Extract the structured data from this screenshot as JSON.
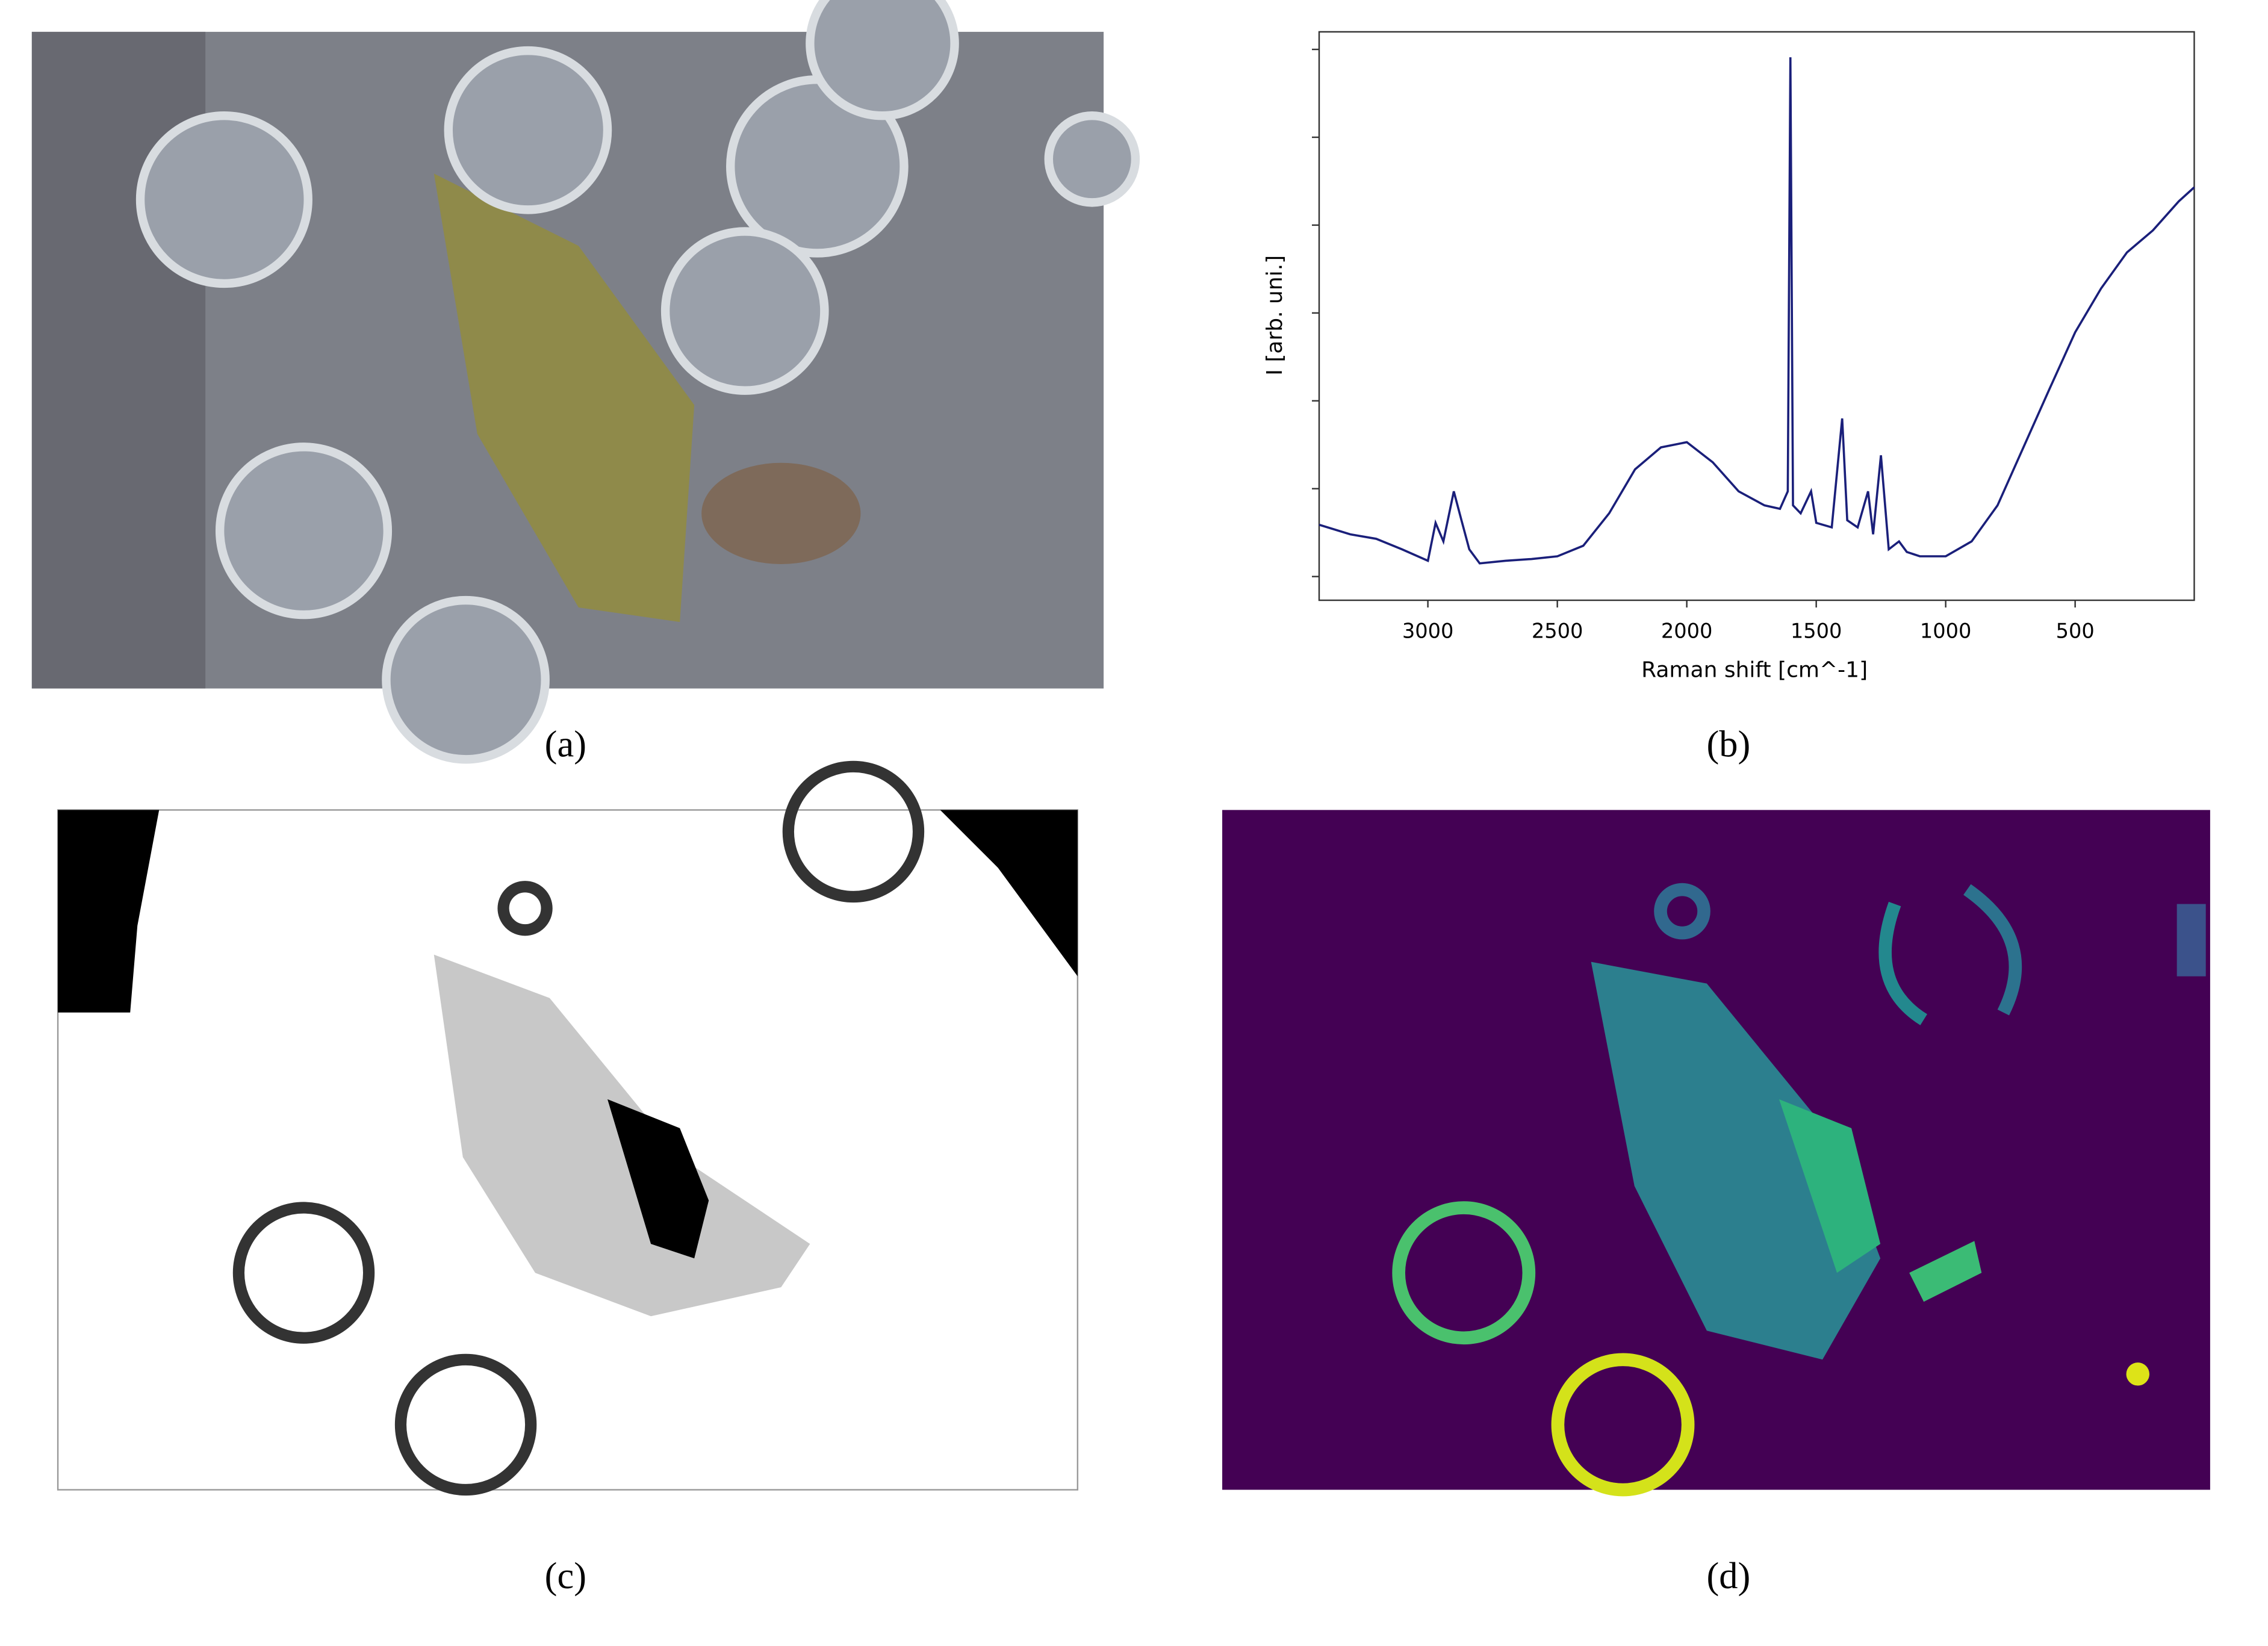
{
  "panel_labels": [
    "(a)",
    "(b)",
    "(c)",
    "(d)"
  ],
  "chart_data": {
    "type": "line",
    "xlabel": "Raman shift [cm^-1]",
    "ylabel": "I [arb. uni.]",
    "xlim": [
      3420,
      40
    ],
    "xticks": [
      3000,
      2500,
      2000,
      1500,
      1000,
      500
    ],
    "ylim": [
      -0.27,
      6.2
    ],
    "yticks": [
      0,
      1,
      2,
      3,
      4,
      5,
      6
    ],
    "color": "#1a1f7a",
    "x": [
      3420,
      3300,
      3200,
      3100,
      3000,
      2970,
      2940,
      2900,
      2870,
      2840,
      2800,
      2700,
      2600,
      2500,
      2400,
      2300,
      2200,
      2100,
      2000,
      1900,
      1800,
      1700,
      1640,
      1610,
      1600,
      1590,
      1560,
      1520,
      1500,
      1440,
      1400,
      1380,
      1340,
      1300,
      1280,
      1250,
      1220,
      1180,
      1150,
      1100,
      1000,
      900,
      800,
      700,
      600,
      500,
      400,
      300,
      200,
      100,
      40
    ],
    "values": [
      0.59,
      0.48,
      0.43,
      0.31,
      0.18,
      0.61,
      0.4,
      0.97,
      0.64,
      0.31,
      0.15,
      0.18,
      0.2,
      0.23,
      0.35,
      0.72,
      1.22,
      1.47,
      1.53,
      1.3,
      0.97,
      0.81,
      0.77,
      0.97,
      5.91,
      0.81,
      0.72,
      0.97,
      0.61,
      0.56,
      1.8,
      0.64,
      0.56,
      0.97,
      0.48,
      1.38,
      0.31,
      0.4,
      0.28,
      0.23,
      0.23,
      0.4,
      0.81,
      1.47,
      2.13,
      2.78,
      3.28,
      3.69,
      3.94,
      4.27,
      4.43
    ]
  }
}
